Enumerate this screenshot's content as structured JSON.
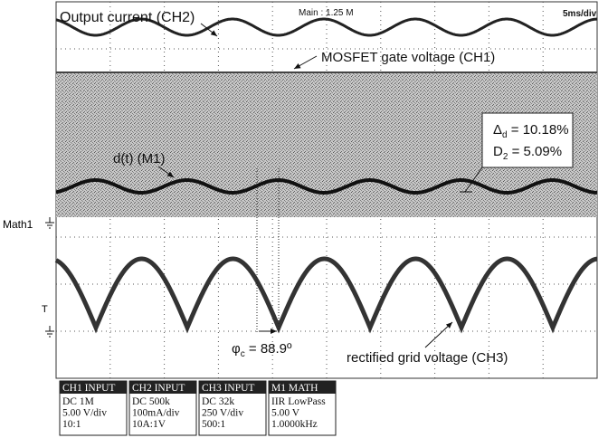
{
  "header": {
    "timebase": "5ms/div",
    "zoom": "Main : 1.25 M"
  },
  "annotations": {
    "output_current": "Output current (CH2)",
    "gate_voltage": "MOSFET gate voltage (CH1)",
    "duty": "d(t) (M1)",
    "delta": {
      "symbol": "Δ",
      "sub": "d",
      "text": " = 10.18%"
    },
    "d2": {
      "symbol": "D",
      "sub": "2",
      "text": " = 5.09%"
    },
    "phase": {
      "symbol": "φ",
      "sub": "c",
      "text": " = 88.9º"
    },
    "grid_voltage": "rectified grid voltage (CH3)",
    "math_marker": "Math1",
    "trigger_marker": "T"
  },
  "channels": [
    {
      "title": "CH1 INPUT",
      "lines": [
        "DC 1M",
        "5.00 V/div",
        "10:1"
      ]
    },
    {
      "title": "CH2 INPUT",
      "lines": [
        "DC 500k",
        "100mA/div",
        "10A:1V"
      ]
    },
    {
      "title": "CH3 INPUT",
      "lines": [
        "DC 32k",
        "250 V/div",
        "500:1"
      ]
    },
    {
      "title": "M1     MATH",
      "lines": [
        "IIR LowPass",
        "5.00 V",
        "1.0000kHz"
      ]
    }
  ]
}
